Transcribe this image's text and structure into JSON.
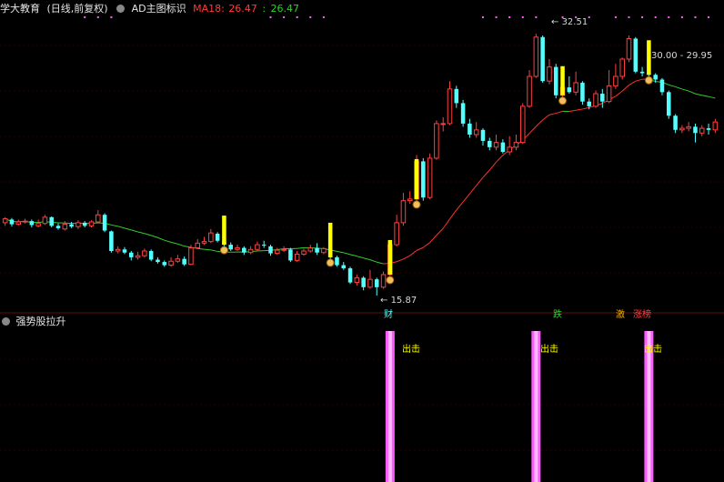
{
  "header": {
    "stock_name": "学大教育",
    "period": "(日线,前复权)",
    "indicator_name": "AD主图标识",
    "ma_label": "MA18:",
    "ma_value": "26.47",
    "ma_sep": ":",
    "ma_value2": "26.47"
  },
  "sub_panel": {
    "title": "强势股拉升"
  },
  "annotations": {
    "high_price": "32.51",
    "low_price": "15.87",
    "range_label": "30.00 - 29.95",
    "sig_cai": "财",
    "sig_die": "跌",
    "sig_ji": "激",
    "sig_zhangting": "涨榜",
    "sig_chuji_1": "出击",
    "sig_chuji_2": "出击",
    "sig_chuji_3": "出击"
  },
  "colors": {
    "up": "#ff4040",
    "down": "#54ffff",
    "ma": "#ff3030",
    "ma_green": "#2fd02f",
    "signal_yellow": "#ffff00",
    "signal_magenta": "#ff5cff",
    "background": "#000000",
    "grid": "#2a0000"
  },
  "chart_data": {
    "type": "candlestick",
    "price_range": [
      15.0,
      33.5
    ],
    "candles": [
      [
        20.5,
        20.75,
        20.85,
        20.3
      ],
      [
        20.7,
        20.4,
        20.8,
        20.25
      ],
      [
        20.4,
        20.55,
        20.7,
        20.3
      ],
      [
        20.55,
        20.6,
        20.75,
        20.45
      ],
      [
        20.6,
        20.35,
        20.7,
        20.2
      ],
      [
        20.3,
        20.45,
        20.7,
        20.2
      ],
      [
        20.45,
        20.85,
        21.0,
        20.35
      ],
      [
        20.85,
        20.3,
        20.9,
        20.2
      ],
      [
        20.3,
        20.15,
        20.45,
        20.05
      ],
      [
        20.1,
        20.4,
        20.6,
        20.0
      ],
      [
        20.4,
        20.25,
        20.55,
        20.15
      ],
      [
        20.25,
        20.5,
        20.65,
        20.1
      ],
      [
        20.5,
        20.3,
        20.6,
        20.2
      ],
      [
        20.3,
        20.55,
        20.65,
        20.2
      ],
      [
        20.55,
        21.0,
        21.3,
        20.45
      ],
      [
        21.0,
        20.0,
        21.1,
        19.9
      ],
      [
        19.95,
        18.7,
        20.0,
        18.6
      ],
      [
        18.7,
        18.8,
        19.0,
        18.55
      ],
      [
        18.8,
        18.6,
        18.95,
        18.5
      ],
      [
        18.6,
        18.3,
        18.7,
        18.1
      ],
      [
        18.3,
        18.4,
        18.65,
        18.15
      ],
      [
        18.4,
        18.7,
        18.85,
        18.3
      ],
      [
        18.7,
        18.15,
        18.8,
        18.05
      ],
      [
        18.15,
        18.0,
        18.3,
        17.9
      ],
      [
        18.0,
        17.8,
        18.1,
        17.7
      ],
      [
        17.8,
        18.05,
        18.3,
        17.7
      ],
      [
        18.05,
        18.2,
        18.45,
        17.95
      ],
      [
        18.2,
        17.85,
        18.35,
        17.75
      ],
      [
        17.85,
        18.9,
        19.1,
        17.8
      ],
      [
        18.9,
        19.2,
        19.45,
        18.85
      ],
      [
        19.2,
        19.3,
        19.6,
        19.1
      ],
      [
        19.3,
        19.85,
        20.1,
        19.2
      ],
      [
        19.8,
        19.35,
        19.9,
        19.25
      ],
      [
        19.35,
        19.1,
        19.5,
        18.95
      ],
      [
        19.1,
        18.8,
        19.25,
        18.7
      ],
      [
        18.8,
        18.9,
        19.1,
        18.7
      ],
      [
        18.9,
        18.6,
        19.0,
        18.45
      ],
      [
        18.6,
        18.8,
        19.0,
        18.5
      ],
      [
        18.8,
        19.1,
        19.3,
        18.7
      ],
      [
        19.1,
        19.05,
        19.35,
        18.9
      ],
      [
        19.0,
        18.55,
        19.1,
        18.4
      ],
      [
        18.55,
        18.75,
        18.9,
        18.45
      ],
      [
        18.75,
        18.8,
        19.0,
        18.65
      ],
      [
        18.8,
        18.1,
        18.9,
        18.0
      ],
      [
        18.1,
        18.5,
        18.7,
        18.0
      ],
      [
        18.5,
        18.7,
        18.85,
        18.4
      ],
      [
        18.7,
        18.9,
        19.1,
        18.6
      ],
      [
        18.9,
        18.6,
        19.2,
        18.45
      ],
      [
        18.6,
        18.85,
        18.95,
        18.5
      ],
      [
        18.85,
        18.3,
        18.95,
        18.2
      ],
      [
        18.3,
        17.8,
        18.4,
        17.7
      ],
      [
        17.8,
        17.6,
        18.0,
        17.5
      ],
      [
        17.6,
        16.7,
        17.7,
        16.6
      ],
      [
        16.7,
        17.0,
        17.2,
        16.5
      ],
      [
        17.0,
        16.4,
        17.1,
        16.2
      ],
      [
        16.4,
        16.9,
        17.5,
        16.3
      ],
      [
        16.9,
        16.4,
        17.0,
        15.87
      ],
      [
        16.4,
        17.2,
        17.4,
        16.3
      ],
      [
        17.2,
        19.1,
        19.3,
        17.1
      ],
      [
        19.1,
        20.5,
        21.0,
        19.0
      ],
      [
        20.5,
        21.9,
        22.4,
        20.3
      ],
      [
        21.9,
        22.0,
        22.5,
        21.7
      ],
      [
        22.0,
        24.4,
        24.8,
        21.8
      ],
      [
        24.4,
        22.1,
        24.6,
        21.9
      ],
      [
        22.1,
        24.6,
        24.9,
        22.0
      ],
      [
        24.6,
        26.8,
        27.0,
        24.5
      ],
      [
        26.8,
        26.8,
        27.2,
        26.3
      ],
      [
        26.8,
        29.0,
        29.5,
        26.7
      ],
      [
        29.0,
        28.1,
        29.2,
        27.8
      ],
      [
        28.1,
        26.8,
        28.3,
        26.6
      ],
      [
        26.8,
        26.1,
        27.1,
        25.9
      ],
      [
        26.1,
        26.4,
        26.9,
        25.9
      ],
      [
        26.4,
        25.7,
        26.5,
        25.4
      ],
      [
        25.7,
        25.3,
        25.9,
        25.1
      ],
      [
        25.3,
        25.6,
        26.1,
        25.1
      ],
      [
        25.6,
        25.0,
        25.8,
        24.9
      ],
      [
        25.0,
        25.3,
        26.0,
        24.8
      ],
      [
        25.3,
        25.6,
        26.1,
        25.1
      ],
      [
        25.6,
        27.9,
        28.1,
        25.5
      ],
      [
        27.9,
        29.8,
        30.2,
        27.8
      ],
      [
        29.8,
        32.3,
        32.51,
        29.7
      ],
      [
        32.3,
        29.5,
        32.4,
        29.4
      ],
      [
        29.5,
        30.4,
        30.9,
        29.3
      ],
      [
        30.4,
        28.6,
        30.6,
        28.4
      ],
      [
        28.6,
        29.1,
        29.6,
        28.4
      ],
      [
        29.1,
        28.8,
        29.8,
        28.7
      ],
      [
        28.8,
        29.4,
        30.1,
        28.6
      ],
      [
        29.4,
        28.2,
        29.5,
        28.0
      ],
      [
        28.2,
        27.9,
        28.4,
        27.7
      ],
      [
        27.9,
        28.7,
        28.9,
        27.8
      ],
      [
        28.7,
        28.2,
        29.0,
        27.8
      ],
      [
        28.2,
        29.2,
        30.2,
        28.1
      ],
      [
        29.2,
        29.8,
        30.6,
        29.0
      ],
      [
        29.8,
        30.9,
        31.0,
        29.6
      ],
      [
        30.9,
        32.2,
        32.4,
        30.7
      ],
      [
        32.2,
        30.1,
        32.3,
        30.0
      ],
      [
        30.1,
        30.0,
        30.4,
        29.8
      ],
      [
        30.0,
        29.9,
        30.1,
        29.7
      ],
      [
        29.9,
        29.6,
        30.0,
        29.4
      ],
      [
        29.6,
        28.8,
        29.7,
        28.6
      ],
      [
        28.8,
        27.3,
        28.9,
        27.1
      ],
      [
        27.3,
        26.4,
        27.4,
        26.2
      ],
      [
        26.4,
        26.5,
        26.7,
        26.2
      ],
      [
        26.5,
        26.6,
        26.9,
        26.3
      ],
      [
        26.6,
        26.2,
        26.8,
        25.6
      ],
      [
        26.2,
        26.5,
        26.7,
        26.0
      ],
      [
        26.5,
        26.4,
        26.8,
        26.1
      ],
      [
        26.4,
        26.9,
        27.1,
        26.2
      ]
    ],
    "signals_main": [
      33,
      49,
      58,
      62,
      84,
      97
    ],
    "signals_sub": [
      58,
      80,
      97
    ]
  }
}
